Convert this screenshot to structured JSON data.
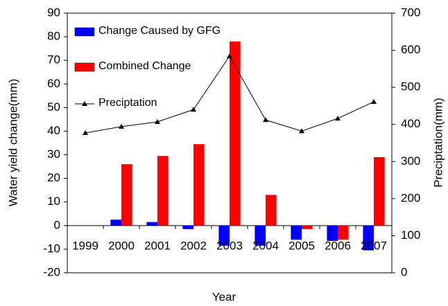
{
  "chart_data": {
    "type": "bar",
    "x_label": "Year",
    "y_label": "Water yield change(mm)",
    "y2_label": "Preciptation(mm)",
    "categories": [
      "1999",
      "2000",
      "2001",
      "2002",
      "2003",
      "2004",
      "2005",
      "2006",
      "2007"
    ],
    "series": [
      {
        "name": "Change Caused by GFG",
        "type": "bar",
        "color": "#0000ff",
        "values": [
          0,
          2.5,
          1.5,
          -1.5,
          -8.5,
          -8.5,
          -6,
          -6.5,
          -10.5
        ]
      },
      {
        "name": "Combined Change",
        "type": "bar",
        "color": "#ff0000",
        "values": [
          0,
          26,
          29.5,
          34.5,
          78,
          13,
          -1.5,
          -6,
          29
        ]
      },
      {
        "name": "Preciptation",
        "type": "line",
        "axis": "y2",
        "color": "#000000",
        "values": [
          377,
          394,
          407,
          440,
          584,
          412,
          382,
          416,
          461
        ]
      }
    ],
    "ylim": [
      -20,
      90
    ],
    "yticks": [
      -20,
      -10,
      0,
      10,
      20,
      30,
      40,
      50,
      60,
      70,
      80,
      90
    ],
    "y2lim": [
      0,
      700
    ],
    "y2ticks": [
      0,
      100,
      200,
      300,
      400,
      500,
      600,
      700
    ],
    "legend": "upper-left",
    "grid": false
  }
}
